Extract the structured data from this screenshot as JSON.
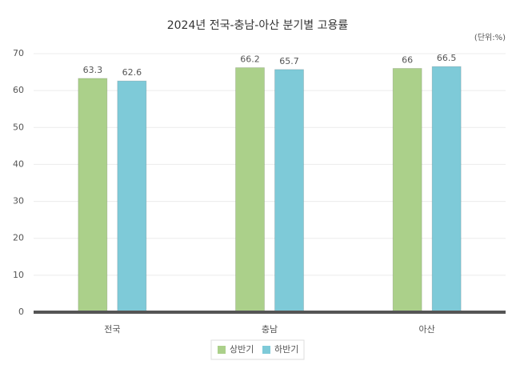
{
  "chart_data": {
    "type": "bar",
    "title": "2024년 전국-충남-아산 분기별 고용률",
    "unit": "(단위:%)",
    "categories": [
      "전국",
      "충남",
      "아산"
    ],
    "series": [
      {
        "name": "상반기",
        "color": "#abd08a",
        "values": [
          63.3,
          66.2,
          66
        ]
      },
      {
        "name": "하반기",
        "color": "#7ecad8",
        "values": [
          62.6,
          65.7,
          66.5
        ]
      }
    ],
    "ylim": [
      0,
      70
    ],
    "yticks": [
      0,
      10,
      20,
      30,
      40,
      50,
      60,
      70
    ],
    "grid": true,
    "legend": "bottom"
  }
}
